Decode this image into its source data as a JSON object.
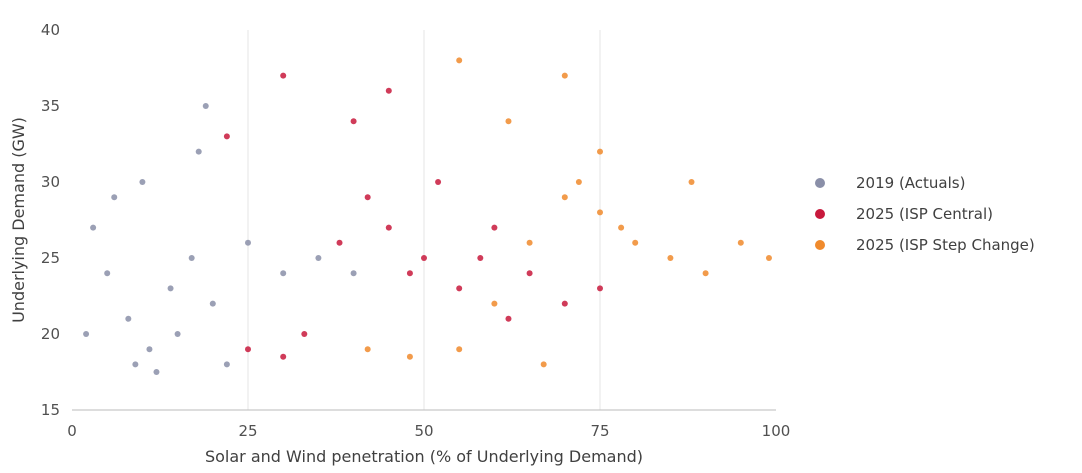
{
  "chart_data": {
    "type": "scatter",
    "xlabel": "Solar and Wind penetration (% of Underlying Demand)",
    "ylabel": "Underlying Demand (GW)",
    "xlim": [
      0,
      100
    ],
    "ylim": [
      15,
      40
    ],
    "x_ticks": [
      "0",
      "25",
      "50",
      "75",
      "100"
    ],
    "y_ticks": [
      "15",
      "20",
      "25",
      "30",
      "35",
      "40"
    ],
    "grid": "vertical",
    "legend_position": "right",
    "series": [
      {
        "name": "2019 (Actuals)",
        "color": "#8a8fa8",
        "points": [
          [
            3,
            27
          ],
          [
            5,
            24
          ],
          [
            8,
            21
          ],
          [
            11,
            19
          ],
          [
            14,
            23
          ],
          [
            17,
            25
          ],
          [
            20,
            22
          ],
          [
            22,
            18
          ],
          [
            6,
            29
          ],
          [
            9,
            18
          ],
          [
            12,
            17.5
          ],
          [
            15,
            20
          ],
          [
            18,
            32
          ],
          [
            19,
            35
          ],
          [
            25,
            26
          ],
          [
            30,
            24
          ],
          [
            35,
            25
          ],
          [
            40,
            24
          ],
          [
            2,
            20
          ],
          [
            10,
            30
          ]
        ]
      },
      {
        "name": "2025 (ISP Central)",
        "color": "#c8193c",
        "points": [
          [
            25,
            19
          ],
          [
            30,
            18.5
          ],
          [
            33,
            20
          ],
          [
            38,
            26
          ],
          [
            42,
            29
          ],
          [
            45,
            27
          ],
          [
            48,
            24
          ],
          [
            50,
            25
          ],
          [
            55,
            23
          ],
          [
            60,
            27
          ],
          [
            65,
            24
          ],
          [
            70,
            22
          ],
          [
            40,
            34
          ],
          [
            45,
            36
          ],
          [
            30,
            37
          ],
          [
            22,
            33
          ],
          [
            52,
            30
          ],
          [
            58,
            25
          ],
          [
            62,
            21
          ],
          [
            75,
            23
          ]
        ]
      },
      {
        "name": "2025 (ISP Step Change)",
        "color": "#f08a2c",
        "points": [
          [
            42,
            19
          ],
          [
            48,
            18.5
          ],
          [
            55,
            19
          ],
          [
            60,
            22
          ],
          [
            65,
            26
          ],
          [
            70,
            29
          ],
          [
            72,
            30
          ],
          [
            75,
            28
          ],
          [
            78,
            27
          ],
          [
            80,
            26
          ],
          [
            85,
            25
          ],
          [
            90,
            24
          ],
          [
            95,
            26
          ],
          [
            99,
            25
          ],
          [
            75,
            32
          ],
          [
            70,
            37
          ],
          [
            55,
            38
          ],
          [
            62,
            34
          ],
          [
            88,
            30
          ],
          [
            67,
            18
          ]
        ]
      }
    ]
  }
}
